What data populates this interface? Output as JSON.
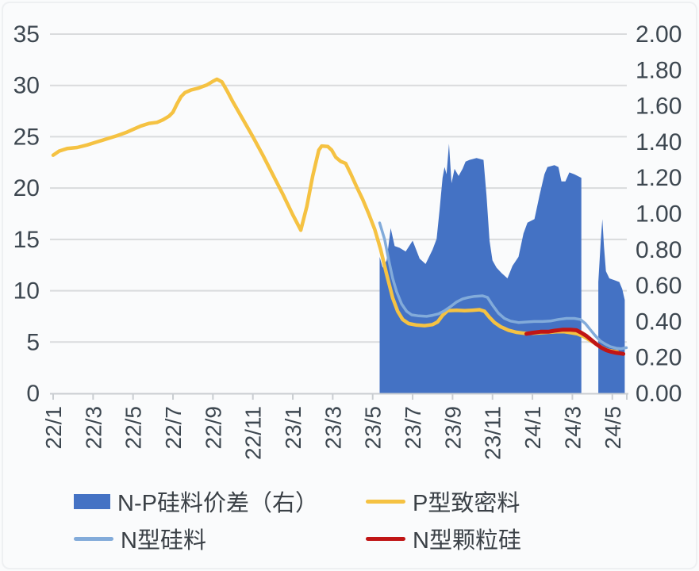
{
  "figure": {
    "background": "#fafbfc",
    "title": ""
  },
  "theme": {
    "grid_color": "#d9dbdd",
    "axis_color": "#c9cdd1",
    "text_color": "#3d4750",
    "legend_text_color": "#3a4046"
  },
  "legend": {
    "items": [
      {
        "label": "N-P硅料价差（右）",
        "swatch": "area",
        "color": "#4472C4"
      },
      {
        "label": "P型致密料",
        "swatch": "line",
        "color": "#F5C242"
      },
      {
        "label": "N型硅料",
        "swatch": "line",
        "color": "#82ABDA"
      },
      {
        "label": "N型颗粒硅",
        "swatch": "line",
        "color": "#C01515"
      }
    ]
  },
  "chart_data": {
    "type": "combo-area-line",
    "x_unit": "months since 2022-01 (22/1)",
    "grid": "horizontal",
    "legend_position": "bottom",
    "x_axis": {
      "rotation": -90,
      "tick_positions": [
        0,
        2,
        4,
        6,
        8,
        10,
        12,
        14,
        16,
        18,
        20,
        22,
        24,
        26,
        28
      ],
      "tick_labels": [
        "22/1",
        "22/3",
        "22/5",
        "22/7",
        "22/9",
        "22/11",
        "23/1",
        "23/3",
        "23/5",
        "23/7",
        "23/9",
        "23/11",
        "24/1",
        "24/3",
        "24/5"
      ]
    },
    "y_left": {
      "min": 0,
      "max": 35,
      "step": 5,
      "tick_values": [
        0,
        5,
        10,
        15,
        20,
        25,
        30,
        35
      ],
      "tick_labels": [
        "0",
        "5",
        "10",
        "15",
        "20",
        "25",
        "30",
        "35"
      ]
    },
    "y_right": {
      "min": 0.0,
      "max": 2.0,
      "step": 0.2,
      "tick_values": [
        0,
        0.2,
        0.4,
        0.6,
        0.8,
        1.0,
        1.2,
        1.4,
        1.6,
        1.8,
        2.0
      ],
      "tick_labels": [
        "0.00",
        "0.20",
        "0.40",
        "0.60",
        "0.80",
        "1.00",
        "1.20",
        "1.40",
        "1.60",
        "1.80",
        "2.00"
      ]
    },
    "series": [
      {
        "name": "N-P硅料价差（右）",
        "type": "area",
        "axis": "right",
        "color": "#4472C4",
        "segments": [
          [
            [
              16.35,
              0.76
            ],
            [
              16.5,
              0.7
            ],
            [
              16.7,
              0.74
            ],
            [
              16.9,
              0.92
            ],
            [
              17.1,
              0.82
            ],
            [
              17.35,
              0.81
            ],
            [
              17.65,
              0.79
            ],
            [
              18.0,
              0.85
            ],
            [
              18.35,
              0.75
            ],
            [
              18.65,
              0.72
            ],
            [
              19.0,
              0.8
            ],
            [
              19.2,
              0.86
            ],
            [
              19.35,
              1.02
            ],
            [
              19.5,
              1.2
            ],
            [
              19.6,
              1.26
            ],
            [
              19.7,
              1.22
            ],
            [
              19.82,
              1.39
            ],
            [
              19.95,
              1.17
            ],
            [
              20.1,
              1.25
            ],
            [
              20.3,
              1.21
            ],
            [
              20.5,
              1.25
            ],
            [
              20.65,
              1.29
            ],
            [
              20.85,
              1.3
            ],
            [
              21.2,
              1.31
            ],
            [
              21.55,
              1.3
            ],
            [
              21.7,
              1.1
            ],
            [
              21.85,
              0.85
            ],
            [
              22.0,
              0.74
            ],
            [
              22.2,
              0.7
            ],
            [
              22.45,
              0.67
            ],
            [
              22.75,
              0.64
            ],
            [
              23.0,
              0.71
            ],
            [
              23.3,
              0.76
            ],
            [
              23.55,
              0.89
            ],
            [
              23.75,
              0.95
            ],
            [
              24.1,
              0.97
            ],
            [
              24.35,
              1.1
            ],
            [
              24.6,
              1.22
            ],
            [
              24.75,
              1.26
            ],
            [
              25.1,
              1.27
            ],
            [
              25.3,
              1.26
            ],
            [
              25.45,
              1.18
            ],
            [
              25.65,
              1.18
            ],
            [
              25.85,
              1.23
            ],
            [
              26.1,
              1.22
            ],
            [
              26.45,
              1.2
            ]
          ],
          [
            [
              27.3,
              0.62
            ],
            [
              27.42,
              0.85
            ],
            [
              27.5,
              0.97
            ],
            [
              27.58,
              0.82
            ],
            [
              27.68,
              0.68
            ],
            [
              27.85,
              0.64
            ],
            [
              28.1,
              0.63
            ],
            [
              28.35,
              0.62
            ],
            [
              28.5,
              0.58
            ],
            [
              28.62,
              0.52
            ]
          ]
        ]
      },
      {
        "name": "P型致密料",
        "type": "line",
        "axis": "left",
        "color": "#F5C242",
        "width": 4.5,
        "points": [
          [
            0,
            23.2
          ],
          [
            0.3,
            23.6
          ],
          [
            0.7,
            23.85
          ],
          [
            1.2,
            23.95
          ],
          [
            1.7,
            24.2
          ],
          [
            2.2,
            24.5
          ],
          [
            2.7,
            24.8
          ],
          [
            3.2,
            25.1
          ],
          [
            3.7,
            25.45
          ],
          [
            4.1,
            25.8
          ],
          [
            4.4,
            26.05
          ],
          [
            4.8,
            26.3
          ],
          [
            5.2,
            26.4
          ],
          [
            5.5,
            26.65
          ],
          [
            5.8,
            27.0
          ],
          [
            6.0,
            27.4
          ],
          [
            6.2,
            28.2
          ],
          [
            6.4,
            28.9
          ],
          [
            6.6,
            29.3
          ],
          [
            6.9,
            29.55
          ],
          [
            7.3,
            29.75
          ],
          [
            7.7,
            30.05
          ],
          [
            8.0,
            30.4
          ],
          [
            8.2,
            30.6
          ],
          [
            8.45,
            30.35
          ],
          [
            8.7,
            29.5
          ],
          [
            9.0,
            28.4
          ],
          [
            9.5,
            26.7
          ],
          [
            10.0,
            25.0
          ],
          [
            10.5,
            23.2
          ],
          [
            11.0,
            21.3
          ],
          [
            11.5,
            19.4
          ],
          [
            12.0,
            17.4
          ],
          [
            12.4,
            15.9
          ],
          [
            12.7,
            18.2
          ],
          [
            13.0,
            21.2
          ],
          [
            13.3,
            23.7
          ],
          [
            13.45,
            24.1
          ],
          [
            13.75,
            24.05
          ],
          [
            13.95,
            23.7
          ],
          [
            14.15,
            23.0
          ],
          [
            14.4,
            22.6
          ],
          [
            14.65,
            22.4
          ],
          [
            14.9,
            21.4
          ],
          [
            15.2,
            20.1
          ],
          [
            15.5,
            18.9
          ],
          [
            15.8,
            17.5
          ],
          [
            16.1,
            16.0
          ],
          [
            16.4,
            14.0
          ],
          [
            16.7,
            11.6
          ],
          [
            17.0,
            9.3
          ],
          [
            17.25,
            8.0
          ],
          [
            17.5,
            7.2
          ],
          [
            17.8,
            6.8
          ],
          [
            18.2,
            6.65
          ],
          [
            18.6,
            6.6
          ],
          [
            19.0,
            6.7
          ],
          [
            19.25,
            6.95
          ],
          [
            19.5,
            7.6
          ],
          [
            19.75,
            8.05
          ],
          [
            20.2,
            8.1
          ],
          [
            20.6,
            8.05
          ],
          [
            21.0,
            8.1
          ],
          [
            21.35,
            8.15
          ],
          [
            21.6,
            8.0
          ],
          [
            21.85,
            7.4
          ],
          [
            22.1,
            6.9
          ],
          [
            22.4,
            6.5
          ],
          [
            22.8,
            6.15
          ],
          [
            23.2,
            5.95
          ],
          [
            23.6,
            5.85
          ],
          [
            24.0,
            5.85
          ],
          [
            24.4,
            5.9
          ],
          [
            24.8,
            5.95
          ],
          [
            25.2,
            6.0
          ],
          [
            25.6,
            6.0
          ],
          [
            25.95,
            5.9
          ],
          [
            26.25,
            5.8
          ],
          [
            26.55,
            5.55
          ],
          [
            26.85,
            5.2
          ],
          [
            27.15,
            4.85
          ],
          [
            27.45,
            4.5
          ],
          [
            27.75,
            4.2
          ],
          [
            28.05,
            4.1
          ],
          [
            28.25,
            4.05
          ]
        ]
      },
      {
        "name": "N型硅料",
        "type": "line",
        "axis": "left",
        "color": "#82ABDA",
        "width": 3.5,
        "points": [
          [
            16.35,
            16.6
          ],
          [
            16.6,
            15.0
          ],
          [
            16.8,
            13.0
          ],
          [
            17.0,
            11.2
          ],
          [
            17.2,
            9.9
          ],
          [
            17.45,
            8.7
          ],
          [
            17.7,
            8.0
          ],
          [
            17.95,
            7.65
          ],
          [
            18.3,
            7.55
          ],
          [
            18.7,
            7.5
          ],
          [
            19.0,
            7.6
          ],
          [
            19.3,
            7.75
          ],
          [
            19.6,
            8.05
          ],
          [
            19.9,
            8.45
          ],
          [
            20.2,
            8.9
          ],
          [
            20.5,
            9.2
          ],
          [
            20.8,
            9.35
          ],
          [
            21.1,
            9.45
          ],
          [
            21.5,
            9.5
          ],
          [
            21.75,
            9.35
          ],
          [
            22.0,
            8.6
          ],
          [
            22.3,
            7.8
          ],
          [
            22.6,
            7.3
          ],
          [
            22.9,
            7.05
          ],
          [
            23.3,
            6.9
          ],
          [
            23.7,
            6.95
          ],
          [
            24.1,
            7.0
          ],
          [
            24.5,
            7.0
          ],
          [
            24.9,
            7.05
          ],
          [
            25.3,
            7.2
          ],
          [
            25.7,
            7.3
          ],
          [
            26.1,
            7.3
          ],
          [
            26.4,
            7.2
          ],
          [
            26.65,
            6.8
          ],
          [
            26.9,
            6.2
          ],
          [
            27.15,
            5.6
          ],
          [
            27.4,
            5.1
          ],
          [
            27.65,
            4.8
          ],
          [
            27.9,
            4.55
          ],
          [
            28.2,
            4.4
          ],
          [
            28.45,
            4.35
          ],
          [
            28.7,
            4.45
          ]
        ]
      },
      {
        "name": "N型颗粒硅",
        "type": "line",
        "axis": "left",
        "color": "#C01515",
        "width": 5,
        "points": [
          [
            23.7,
            5.8
          ],
          [
            24.0,
            5.9
          ],
          [
            24.4,
            6.0
          ],
          [
            24.8,
            6.0
          ],
          [
            25.1,
            6.1
          ],
          [
            25.5,
            6.2
          ],
          [
            25.9,
            6.2
          ],
          [
            26.2,
            6.15
          ],
          [
            26.45,
            5.9
          ],
          [
            26.7,
            5.6
          ],
          [
            26.95,
            5.2
          ],
          [
            27.2,
            4.8
          ],
          [
            27.45,
            4.45
          ],
          [
            27.7,
            4.2
          ],
          [
            27.95,
            4.05
          ],
          [
            28.2,
            3.95
          ],
          [
            28.55,
            3.85
          ]
        ]
      }
    ]
  }
}
